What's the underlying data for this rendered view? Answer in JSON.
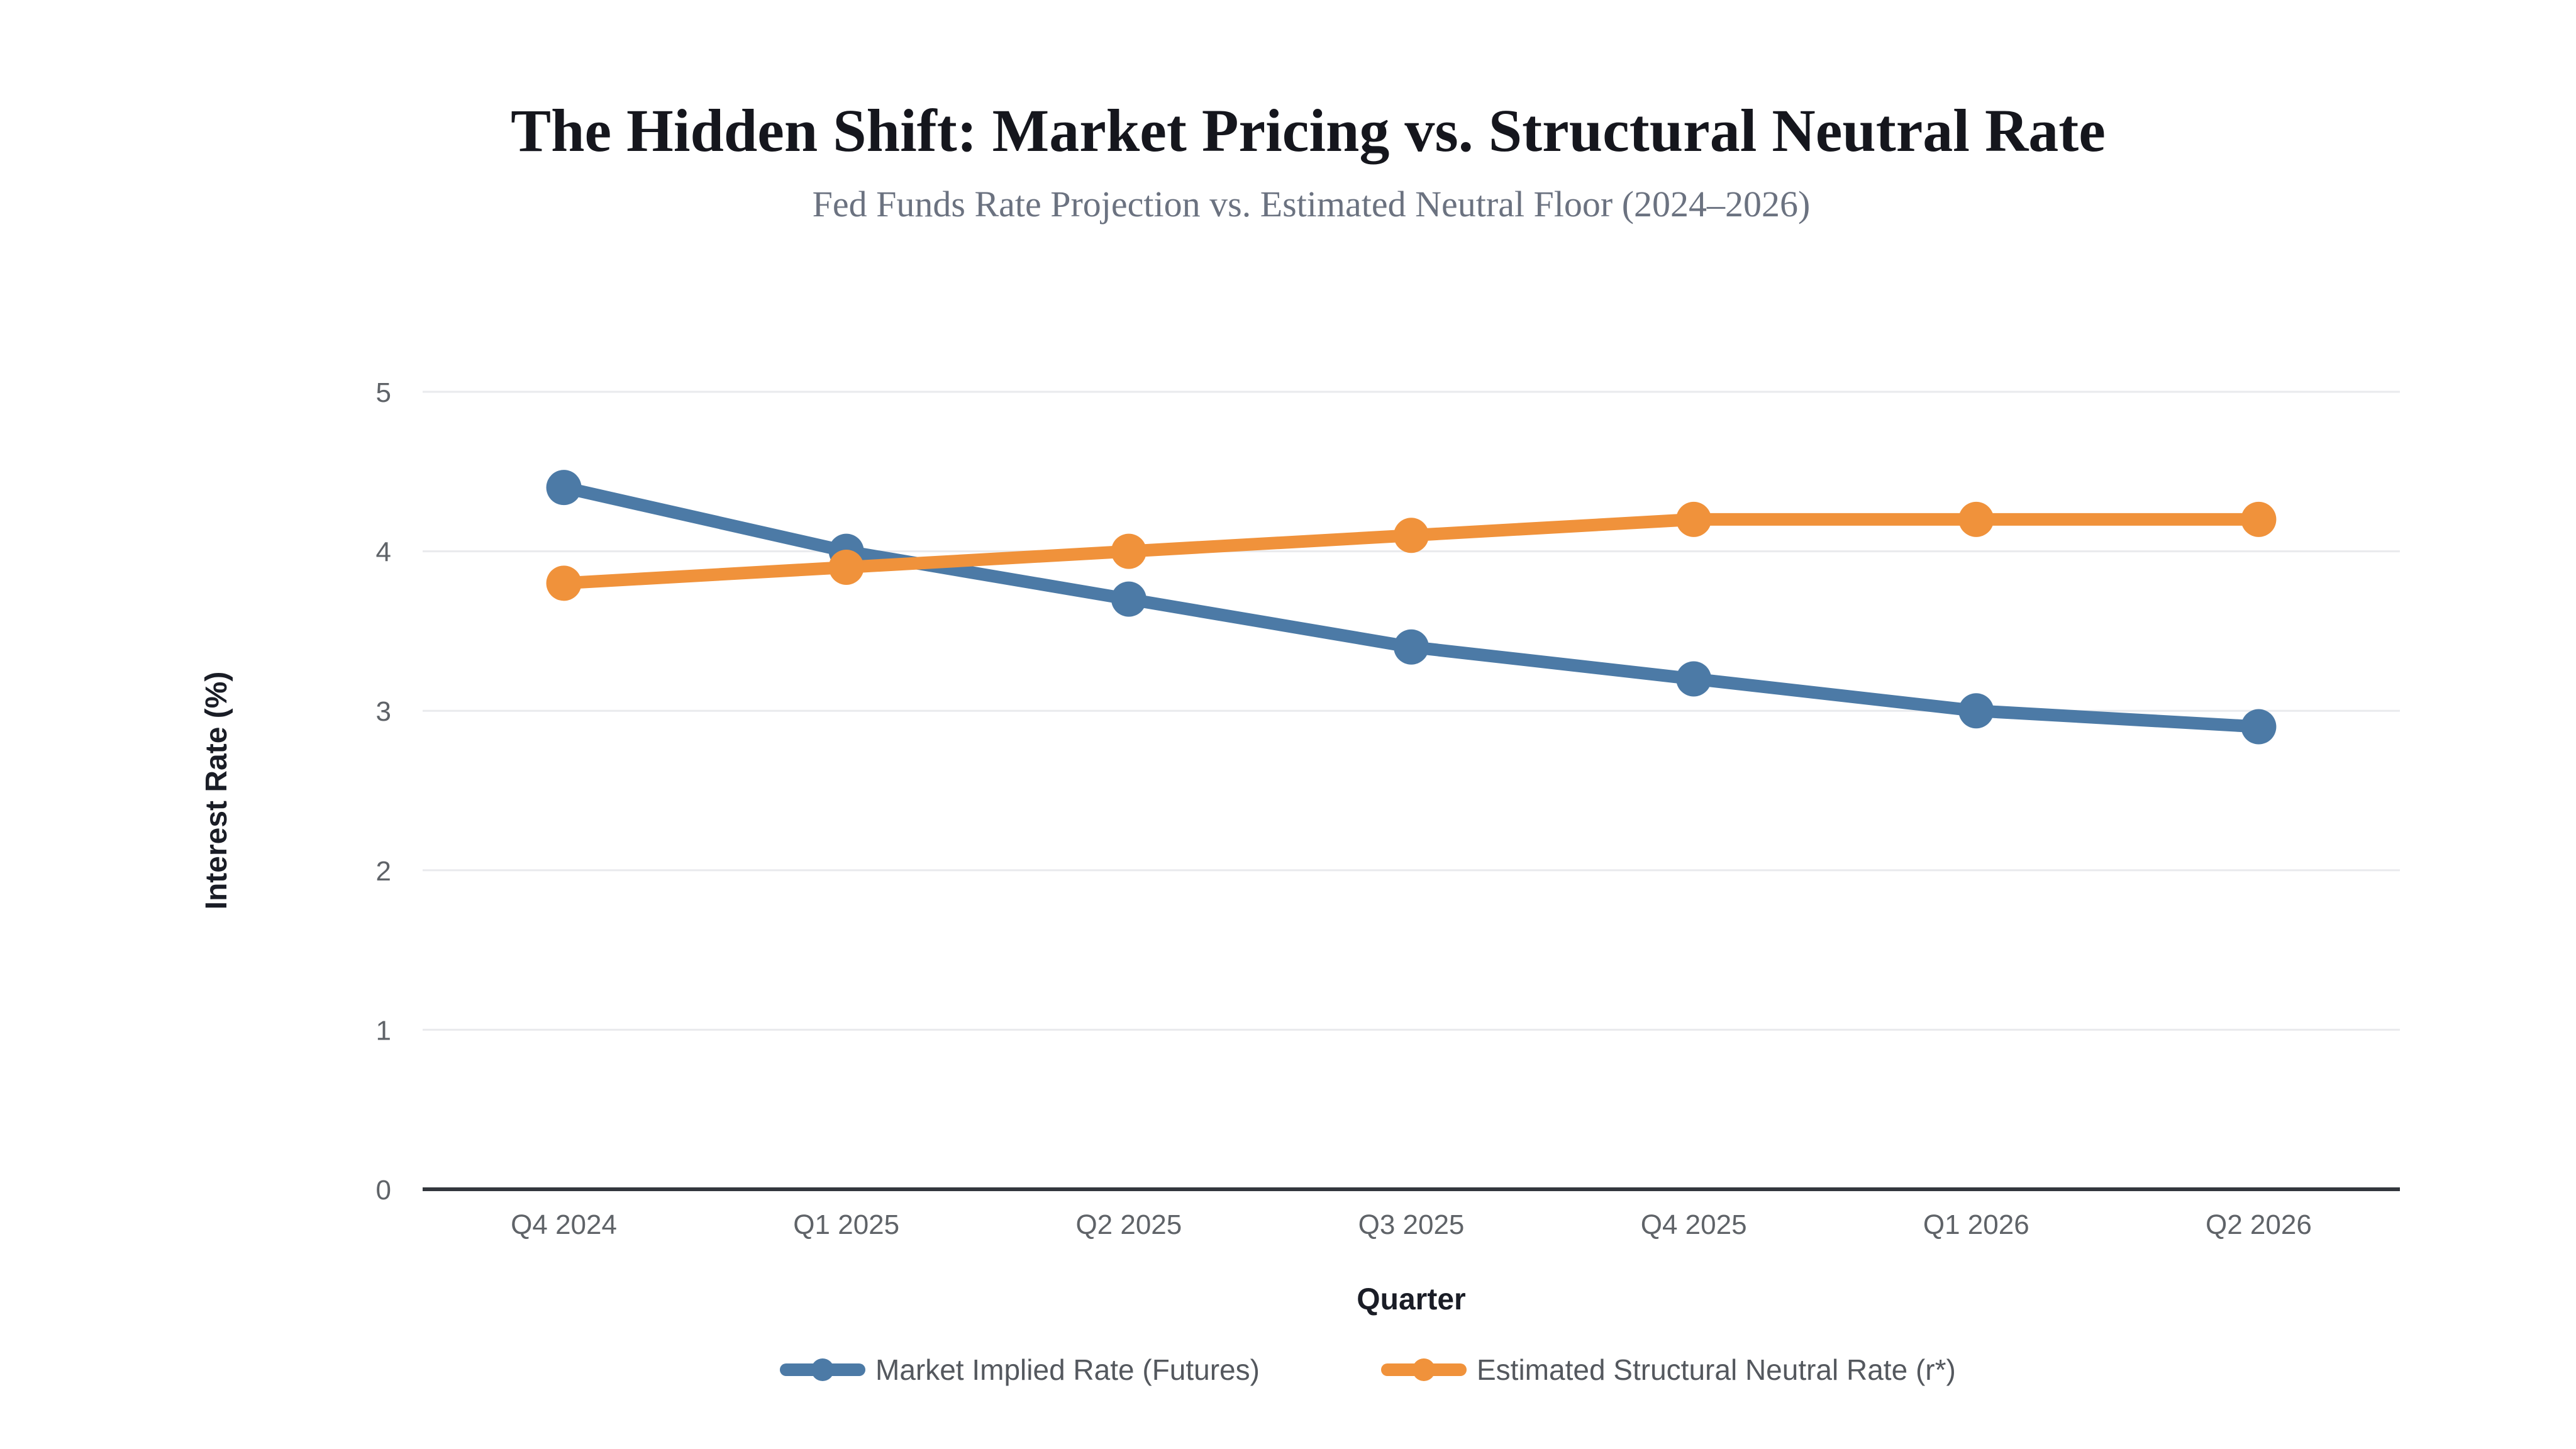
{
  "header": {
    "title": "The Hidden Shift: Market Pricing vs. Structural Neutral Rate",
    "subtitle": "Fed Funds Rate Projection vs. Estimated Neutral Floor (2024–2026)"
  },
  "chart_data": {
    "type": "line",
    "title": "The Hidden Shift: Market Pricing vs. Structural Neutral Rate",
    "subtitle": "Fed Funds Rate Projection vs. Estimated Neutral Floor (2024–2026)",
    "categories": [
      "Q4 2024",
      "Q1 2025",
      "Q2 2025",
      "Q3 2025",
      "Q4 2025",
      "Q1 2026",
      "Q2 2026"
    ],
    "series": [
      {
        "name": "Market Implied Rate (Futures)",
        "color": "#4c7aa6",
        "values": [
          4.4,
          4.0,
          3.7,
          3.4,
          3.2,
          3.0,
          2.9
        ]
      },
      {
        "name": "Estimated Structural Neutral Rate (r*)",
        "color": "#f0923b",
        "values": [
          3.8,
          3.9,
          4.0,
          4.1,
          4.2,
          4.2,
          4.2
        ]
      }
    ],
    "xlabel": "Quarter",
    "ylabel": "Interest Rate (%)",
    "ylim": [
      0,
      5
    ],
    "yticks": [
      0,
      1,
      2,
      3,
      4,
      5
    ],
    "grid": true,
    "legend_position": "bottom"
  },
  "colors": {
    "gridline": "#e9eaed",
    "axis_line": "#33373d",
    "tick_text": "#5f6368",
    "title_text": "#15161d",
    "subtitle_text": "#6b7280"
  }
}
